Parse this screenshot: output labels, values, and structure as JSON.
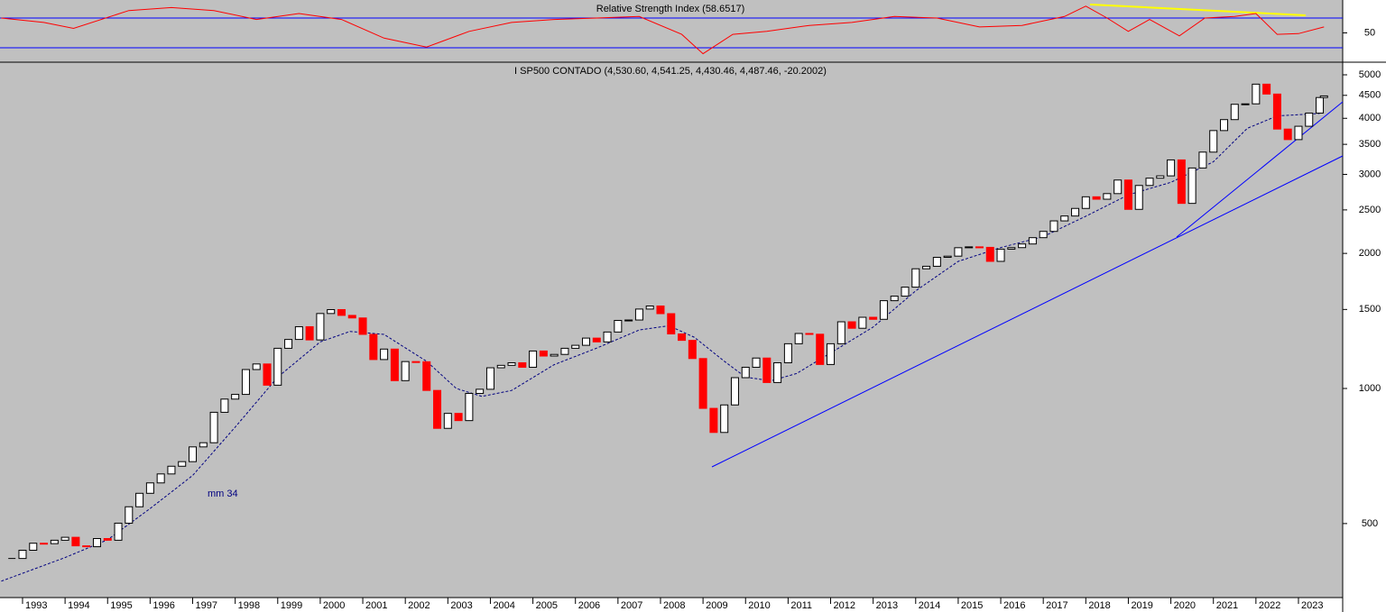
{
  "chart_data": [
    {
      "type": "line",
      "title": "Relative Strength Index (58.6517)",
      "color": "#ff0000",
      "x": [
        1992.5,
        1993.5,
        1994.2,
        1995.5,
        1996.5,
        1997.5,
        1998.5,
        1999.5,
        2000.5,
        2001.5,
        2002.5,
        2003.5,
        2004.5,
        2005.5,
        2006.5,
        2007.5,
        2008.5,
        2009.0,
        2009.7,
        2010.5,
        2011.5,
        2012.5,
        2013.5,
        2014.5,
        2015.5,
        2016.5,
        2017.5,
        2018.0,
        2018.5,
        2019.0,
        2019.5,
        2020.2,
        2020.8,
        2021.5,
        2022.0,
        2022.5,
        2023.0,
        2023.6
      ],
      "values": [
        70,
        64,
        56,
        80,
        84,
        80,
        68,
        76,
        68,
        43,
        31,
        52,
        64,
        68,
        70,
        72,
        48,
        22,
        48,
        52,
        60,
        64,
        72,
        70,
        58,
        60,
        72,
        86,
        70,
        52,
        68,
        46,
        70,
        72,
        76,
        48,
        49,
        58
      ],
      "xlim": [
        1992.47,
        2024.04
      ],
      "ylim": [
        11.8,
        94.2
      ],
      "yticks": [
        50
      ],
      "hlines": [
        70,
        30
      ],
      "hline_color": "#0000ff"
    },
    {
      "type": "candlestick",
      "title": "I SP500 CONTADO (4,530.60, 4,541.25, 4,430.46, 4,487.46, -20.2002)",
      "colors": {
        "up": "#ffffff",
        "down": "#ff0000"
      },
      "x": [
        1992.75,
        1993.0,
        1993.25,
        1993.5,
        1993.75,
        1994.0,
        1994.25,
        1994.5,
        1994.75,
        1995.0,
        1995.25,
        1995.5,
        1995.75,
        1996.0,
        1996.25,
        1996.5,
        1996.75,
        1997.0,
        1997.25,
        1997.5,
        1997.75,
        1998.0,
        1998.25,
        1998.5,
        1998.75,
        1999.0,
        1999.25,
        1999.5,
        1999.75,
        2000.0,
        2000.25,
        2000.5,
        2000.75,
        2001.0,
        2001.25,
        2001.5,
        2001.75,
        2002.0,
        2002.25,
        2002.5,
        2002.75,
        2003.0,
        2003.25,
        2003.5,
        2003.75,
        2004.0,
        2004.25,
        2004.5,
        2004.75,
        2005.0,
        2005.25,
        2005.5,
        2005.75,
        2006.0,
        2006.25,
        2006.5,
        2006.75,
        2007.0,
        2007.25,
        2007.5,
        2007.75,
        2008.0,
        2008.25,
        2008.5,
        2008.75,
        2009.0,
        2009.25,
        2009.5,
        2009.75,
        2010.0,
        2010.25,
        2010.5,
        2010.75,
        2011.0,
        2011.25,
        2011.5,
        2011.75,
        2012.0,
        2012.25,
        2012.5,
        2012.75,
        2013.0,
        2013.25,
        2013.5,
        2013.75,
        2014.0,
        2014.25,
        2014.5,
        2014.75,
        2015.0,
        2015.25,
        2015.5,
        2015.75,
        2016.0,
        2016.25,
        2016.5,
        2016.75,
        2017.0,
        2017.25,
        2017.5,
        2017.75,
        2018.0,
        2018.25,
        2018.5,
        2018.75,
        2019.0,
        2019.25,
        2019.5,
        2019.75,
        2020.0,
        2020.25,
        2020.5,
        2020.75,
        2021.0,
        2021.25,
        2021.5,
        2021.75,
        2022.0,
        2022.25,
        2022.5,
        2022.75,
        2023.0,
        2023.25,
        2023.5,
        2023.6
      ],
      "values": [
        418,
        436,
        452,
        451,
        459,
        466,
        446,
        444,
        463,
        459,
        501,
        545,
        584,
        616,
        645,
        671,
        687,
        741,
        757,
        885,
        947,
        970,
        1102,
        1134,
        1017,
        1229,
        1286,
        1373,
        1283,
        1469,
        1499,
        1455,
        1436,
        1320,
        1160,
        1224,
        1041,
        1148,
        1147,
        990,
        815,
        880,
        848,
        975,
        996,
        1112,
        1126,
        1141,
        1115,
        1212,
        1181,
        1191,
        1229,
        1248,
        1295,
        1270,
        1336,
        1418,
        1421,
        1503,
        1527,
        1468,
        1323,
        1280,
        1166,
        903,
        798,
        919,
        1057,
        1115,
        1169,
        1031,
        1141,
        1258,
        1326,
        1321,
        1131,
        1258,
        1408,
        1362,
        1441,
        1426,
        1569,
        1606,
        1682,
        1848,
        1872,
        1960,
        1972,
        2059,
        2068,
        2063,
        1920,
        2044,
        2060,
        2099,
        2168,
        2239,
        2363,
        2423,
        2519,
        2674,
        2641,
        2718,
        2914,
        2507,
        2834,
        2942,
        2977,
        3231,
        2585,
        3100,
        3363,
        3756,
        3973,
        4298,
        4308,
        4766,
        4530,
        3785,
        3586,
        3840,
        4109,
        4450,
        4487
      ],
      "series": [
        {
          "name": "mm 34",
          "color": "#000080",
          "x": [
            1992.5,
            1994.0,
            1995.0,
            1996.0,
            1997.0,
            1998.0,
            1999.0,
            2000.0,
            2000.7,
            2001.5,
            2002.5,
            2003.2,
            2003.8,
            2004.5,
            2005.5,
            2006.5,
            2007.5,
            2008.2,
            2008.8,
            2009.5,
            2010.0,
            2010.6,
            2011.2,
            2012.0,
            2013.0,
            2014.0,
            2015.0,
            2016.0,
            2017.0,
            2018.0,
            2019.0,
            2020.0,
            2021.0,
            2021.8,
            2022.5,
            2023.5
          ],
          "values": [
            372,
            420,
            460,
            540,
            640,
            820,
            1060,
            1270,
            1340,
            1320,
            1150,
            1000,
            960,
            990,
            1130,
            1230,
            1350,
            1380,
            1300,
            1150,
            1060,
            1040,
            1080,
            1200,
            1370,
            1650,
            1920,
            2060,
            2180,
            2420,
            2700,
            2880,
            3200,
            3800,
            4050,
            4100
          ]
        }
      ],
      "log_scale": true,
      "xlim": [
        1992.47,
        2024.04
      ],
      "ylim": [
        342,
        5310
      ],
      "yticks": [
        500,
        1000,
        1500,
        2000,
        2500,
        3000,
        3500,
        4000,
        4500,
        5000
      ],
      "xticks": [
        1993,
        1994,
        1995,
        1996,
        1997,
        1998,
        1999,
        2000,
        2001,
        2002,
        2003,
        2004,
        2005,
        2006,
        2007,
        2008,
        2009,
        2010,
        2011,
        2012,
        2013,
        2014,
        2015,
        2016,
        2017,
        2018,
        2019,
        2020,
        2021,
        2022,
        2023
      ]
    }
  ]
}
